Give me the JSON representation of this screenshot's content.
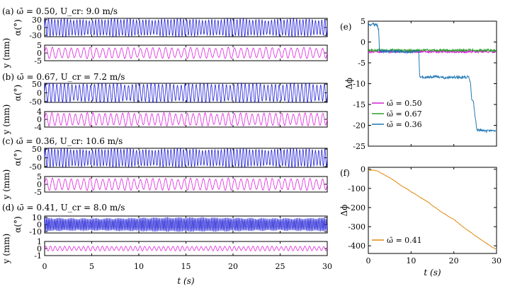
{
  "figure": {
    "x_axis_label": "t (s)",
    "x_ticks": [
      "0",
      "5",
      "10",
      "15",
      "20",
      "25",
      "30"
    ]
  },
  "chart_data": [
    {
      "id": "a",
      "panel_label": "(a)",
      "title": "(a) ω̄ = 0.50, U_cr: 9.0 m/s",
      "type": "line",
      "alpha": {
        "ylabel": "α(°)",
        "ylim": [
          -35,
          35
        ],
        "yticks": [
          "30",
          "0",
          "-30"
        ],
        "amplitude": 30,
        "frequency_hz": 3.0,
        "color": "#1f1fd6"
      },
      "y": {
        "ylabel": "y (mm)",
        "ylim": [
          -5,
          5
        ],
        "yticks": [
          "5",
          "0",
          "-5"
        ],
        "amplitude": 3.2,
        "frequency_hz": 1.5,
        "color": "#e020e0"
      },
      "xlim": [
        0,
        30
      ]
    },
    {
      "id": "b",
      "panel_label": "(b)",
      "title": "(b) ω̄ = 0.67, U_cr = 7.2 m/s",
      "type": "line",
      "alpha": {
        "ylabel": "α(°)",
        "ylim": [
          -55,
          55
        ],
        "yticks": [
          "50",
          "0",
          "-50"
        ],
        "amplitude": 50,
        "frequency_hz": 2.5,
        "color": "#1f1fd6"
      },
      "y": {
        "ylabel": "y (mm)",
        "ylim": [
          -4,
          4
        ],
        "yticks": [
          "4",
          "0",
          "-4"
        ],
        "amplitude": 3.0,
        "frequency_hz": 1.6,
        "color": "#e020e0"
      },
      "xlim": [
        0,
        30
      ]
    },
    {
      "id": "c",
      "panel_label": "(c)",
      "title": "(c) ω̄ = 0.36, U_cr: 10.6 m/s",
      "type": "line",
      "alpha": {
        "ylabel": "α(°)",
        "ylim": [
          -55,
          55
        ],
        "yticks": [
          "50",
          "0",
          "-50"
        ],
        "amplitude": 48,
        "frequency_hz": 3.0,
        "color": "#1f1fd6"
      },
      "y": {
        "ylabel": "y (mm)",
        "ylim": [
          -5,
          5
        ],
        "yticks": [
          "5",
          "0",
          "-5"
        ],
        "amplitude": 3.5,
        "frequency_hz": 1.5,
        "color": "#e020e0"
      },
      "xlim": [
        0,
        30
      ]
    },
    {
      "id": "d",
      "panel_label": "(d)",
      "title": "(d) ω̄ = 0.41, U_cr = 8.0 m/s",
      "type": "line",
      "alpha": {
        "ylabel": "α(°)",
        "ylim": [
          -12,
          12
        ],
        "yticks": [
          "10",
          "0",
          "-10"
        ],
        "amplitude": 9,
        "frequency_hz": 6.0,
        "color": "#1f1fd6"
      },
      "y": {
        "ylabel": "y (mm)",
        "ylim": [
          -1,
          1
        ],
        "yticks": [
          "1",
          "0",
          "-1"
        ],
        "amplitude": 0.3,
        "frequency_hz": 2.0,
        "color": "#e020e0"
      },
      "xlim": [
        0,
        30
      ]
    },
    {
      "id": "e",
      "panel_label": "(e)",
      "type": "line",
      "ylabel": "Δϕ",
      "xlabel": "",
      "xlim": [
        0,
        30
      ],
      "ylim": [
        -25,
        5
      ],
      "yticks": [
        "5",
        "0",
        "-5",
        "-10",
        "-15",
        "-20",
        "-25"
      ],
      "xticks": [],
      "legend_position": "bottom-left",
      "series": [
        {
          "name": "ω̄ = 0.50",
          "color": "#d020d0",
          "x": [
            0,
            30
          ],
          "y": [
            -2.3,
            -2.3
          ]
        },
        {
          "name": "ω̄ = 0.67",
          "color": "#2aa02a",
          "x": [
            0,
            30
          ],
          "y": [
            -2.0,
            -2.0
          ]
        },
        {
          "name": "ω̄ = 0.36",
          "color": "#1f77b4",
          "x": [
            0,
            0.5,
            1.0,
            1.5,
            2.0,
            2.4,
            2.6,
            3.0,
            5,
            7,
            9,
            11,
            11.8,
            12.0,
            12.3,
            14,
            16,
            18,
            20,
            22,
            23.5,
            23.9,
            24.2,
            24.6,
            25.0,
            25.4,
            26,
            28,
            30
          ],
          "y": [
            4.2,
            4.0,
            4.3,
            4.1,
            4.2,
            3.0,
            -2.0,
            -2.2,
            -2.3,
            -2.2,
            -2.4,
            -2.3,
            -2.3,
            -8.0,
            -8.5,
            -8.4,
            -8.3,
            -8.6,
            -8.4,
            -8.5,
            -8.4,
            -10.0,
            -14.0,
            -14.5,
            -18.0,
            -21.0,
            -21.2,
            -21.4,
            -21.3
          ]
        }
      ]
    },
    {
      "id": "f",
      "panel_label": "(f)",
      "type": "line",
      "ylabel": "Δϕ",
      "xlabel": "t (s)",
      "xlim": [
        0,
        30
      ],
      "ylim": [
        -440,
        10
      ],
      "yticks": [
        "0",
        "-100",
        "-200",
        "-300",
        "-400"
      ],
      "xticks": [
        "0",
        "10",
        "20",
        "30"
      ],
      "legend_position": "bottom-left",
      "series": [
        {
          "name": "ω̄ = 0.41",
          "color": "#e08a10",
          "x": [
            0,
            1,
            2,
            3,
            4,
            5,
            6,
            7,
            8,
            9,
            10,
            11,
            12,
            13,
            14,
            15,
            16,
            17,
            18,
            19,
            20,
            21,
            22,
            23,
            24,
            25,
            26,
            27,
            28,
            29,
            30
          ],
          "y": [
            -5,
            -5,
            -8,
            -20,
            -32,
            -45,
            -58,
            -75,
            -90,
            -102,
            -118,
            -130,
            -145,
            -158,
            -172,
            -190,
            -205,
            -222,
            -235,
            -250,
            -262,
            -280,
            -298,
            -315,
            -330,
            -348,
            -362,
            -378,
            -392,
            -408,
            -418
          ]
        }
      ]
    }
  ]
}
